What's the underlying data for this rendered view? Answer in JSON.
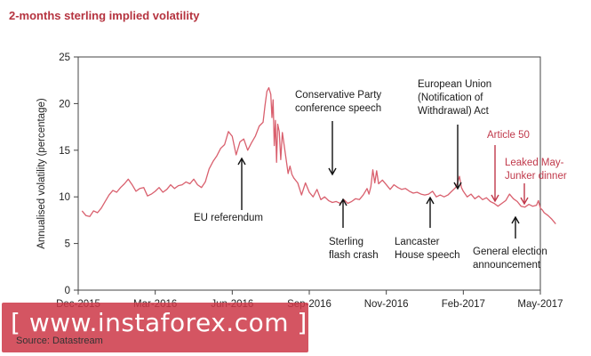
{
  "chart_data": {
    "type": "line",
    "title": "2-months sterling implied volatility",
    "ylabel": "Annualised volatility (percentage)",
    "xlabel": "",
    "ylim": [
      0,
      25
    ],
    "yticks": [
      0,
      5,
      10,
      15,
      20,
      25
    ],
    "xticks": [
      "Dec-2015",
      "Mar-2016",
      "Jun-2016",
      "Sep-2016",
      "Nov-2016",
      "Feb-2017",
      "May-2017"
    ],
    "grid": false,
    "line_color": "#d9606e",
    "series": [
      {
        "name": "",
        "values": [
          [
            0.1,
            8.5
          ],
          [
            0.2,
            8.0
          ],
          [
            0.3,
            7.9
          ],
          [
            0.4,
            8.5
          ],
          [
            0.5,
            8.3
          ],
          [
            0.6,
            8.8
          ],
          [
            0.7,
            9.5
          ],
          [
            0.8,
            10.2
          ],
          [
            0.9,
            10.7
          ],
          [
            1.0,
            10.5
          ],
          [
            1.1,
            11.0
          ],
          [
            1.2,
            11.4
          ],
          [
            1.3,
            11.9
          ],
          [
            1.4,
            11.3
          ],
          [
            1.5,
            10.6
          ],
          [
            1.6,
            10.9
          ],
          [
            1.7,
            11.0
          ],
          [
            1.8,
            10.1
          ],
          [
            1.9,
            10.3
          ],
          [
            2.0,
            10.6
          ],
          [
            2.1,
            11.0
          ],
          [
            2.2,
            10.5
          ],
          [
            2.3,
            10.8
          ],
          [
            2.4,
            11.3
          ],
          [
            2.5,
            10.9
          ],
          [
            2.6,
            11.2
          ],
          [
            2.7,
            11.3
          ],
          [
            2.8,
            11.6
          ],
          [
            2.9,
            11.4
          ],
          [
            3.0,
            11.9
          ],
          [
            3.1,
            11.3
          ],
          [
            3.2,
            11.0
          ],
          [
            3.3,
            11.6
          ],
          [
            3.4,
            13.0
          ],
          [
            3.5,
            13.8
          ],
          [
            3.6,
            14.4
          ],
          [
            3.7,
            15.2
          ],
          [
            3.8,
            15.6
          ],
          [
            3.9,
            17.0
          ],
          [
            4.0,
            16.5
          ],
          [
            4.1,
            14.5
          ],
          [
            4.2,
            15.9
          ],
          [
            4.3,
            16.2
          ],
          [
            4.4,
            15.0
          ],
          [
            4.5,
            15.8
          ],
          [
            4.6,
            16.5
          ],
          [
            4.7,
            17.6
          ],
          [
            4.8,
            18.0
          ],
          [
            4.85,
            19.8
          ],
          [
            4.9,
            21.3
          ],
          [
            4.95,
            21.7
          ],
          [
            5.0,
            21.0
          ],
          [
            5.03,
            18.5
          ],
          [
            5.06,
            20.4
          ],
          [
            5.09,
            15.5
          ],
          [
            5.12,
            18.2
          ],
          [
            5.15,
            13.7
          ],
          [
            5.18,
            17.8
          ],
          [
            5.22,
            17.0
          ],
          [
            5.26,
            14.0
          ],
          [
            5.3,
            16.9
          ],
          [
            5.35,
            15.5
          ],
          [
            5.4,
            14.0
          ],
          [
            5.45,
            12.5
          ],
          [
            5.5,
            13.3
          ],
          [
            5.55,
            12.4
          ],
          [
            5.6,
            12.0
          ],
          [
            5.7,
            11.5
          ],
          [
            5.8,
            10.2
          ],
          [
            5.9,
            11.5
          ],
          [
            6.0,
            10.5
          ],
          [
            6.1,
            10.0
          ],
          [
            6.2,
            10.8
          ],
          [
            6.3,
            9.7
          ],
          [
            6.4,
            10.0
          ],
          [
            6.5,
            9.6
          ],
          [
            6.6,
            9.4
          ],
          [
            6.7,
            9.5
          ],
          [
            6.8,
            9.3
          ],
          [
            6.9,
            9.7
          ],
          [
            7.0,
            9.3
          ],
          [
            7.1,
            9.5
          ],
          [
            7.2,
            9.8
          ],
          [
            7.3,
            9.7
          ],
          [
            7.4,
            10.2
          ],
          [
            7.5,
            10.9
          ],
          [
            7.55,
            10.3
          ],
          [
            7.6,
            11.1
          ],
          [
            7.65,
            12.9
          ],
          [
            7.7,
            11.5
          ],
          [
            7.75,
            12.8
          ],
          [
            7.8,
            11.4
          ],
          [
            7.9,
            11.8
          ],
          [
            8.0,
            11.3
          ],
          [
            8.1,
            10.8
          ],
          [
            8.2,
            11.3
          ],
          [
            8.3,
            11.0
          ],
          [
            8.4,
            10.8
          ],
          [
            8.5,
            10.9
          ],
          [
            8.6,
            10.6
          ],
          [
            8.7,
            10.4
          ],
          [
            8.8,
            10.5
          ],
          [
            8.9,
            10.3
          ],
          [
            9.0,
            10.2
          ],
          [
            9.1,
            10.3
          ],
          [
            9.2,
            10.6
          ],
          [
            9.3,
            10.0
          ],
          [
            9.4,
            10.2
          ],
          [
            9.5,
            10.0
          ],
          [
            9.6,
            10.2
          ],
          [
            9.7,
            10.6
          ],
          [
            9.8,
            11.0
          ],
          [
            9.85,
            11.5
          ],
          [
            9.9,
            12.2
          ],
          [
            9.95,
            11.0
          ],
          [
            10.0,
            10.6
          ],
          [
            10.1,
            10.0
          ],
          [
            10.2,
            10.3
          ],
          [
            10.3,
            9.8
          ],
          [
            10.4,
            10.1
          ],
          [
            10.5,
            9.7
          ],
          [
            10.6,
            9.9
          ],
          [
            10.7,
            9.5
          ],
          [
            10.8,
            9.3
          ],
          [
            10.9,
            9.0
          ],
          [
            11.0,
            9.3
          ],
          [
            11.1,
            9.6
          ],
          [
            11.2,
            10.3
          ],
          [
            11.3,
            9.8
          ],
          [
            11.4,
            9.5
          ],
          [
            11.5,
            9.0
          ],
          [
            11.6,
            8.9
          ],
          [
            11.7,
            9.2
          ],
          [
            11.8,
            9.0
          ],
          [
            11.9,
            9.1
          ],
          [
            11.95,
            9.6
          ],
          [
            12.0,
            8.8
          ],
          [
            12.05,
            8.6
          ],
          [
            12.1,
            8.3
          ],
          [
            12.2,
            8.0
          ],
          [
            12.3,
            7.6
          ],
          [
            12.4,
            7.1
          ]
        ]
      }
    ],
    "annotations": [
      {
        "id": "eu-referendum",
        "lines": [
          "EU referendum"
        ],
        "color": "black",
        "arrow": "up",
        "x": 5.1,
        "y": 13.8
      },
      {
        "id": "conservative-conference",
        "lines": [
          "Conservative Party",
          "conference speech"
        ],
        "color": "black",
        "arrow": "down",
        "x": 7.45,
        "y": 12.7
      },
      {
        "id": "sterling-flash-crash",
        "lines": [
          "Sterling",
          "flash crash"
        ],
        "color": "black",
        "arrow": "up",
        "x": 7.7,
        "y": 9.5
      },
      {
        "id": "lancaster-house",
        "lines": [
          "Lancaster",
          "House speech"
        ],
        "color": "black",
        "arrow": "up",
        "x": 9.95,
        "y": 9.6
      },
      {
        "id": "article-50-act",
        "lines": [
          "European Union",
          "(Notification of",
          "Withdrawal) Act"
        ],
        "color": "black",
        "arrow": "down",
        "x": 11.0,
        "y": 10.3
      },
      {
        "id": "article-50",
        "lines": [
          "Article 50"
        ],
        "color": "red",
        "arrow": "down",
        "x": 11.35,
        "y": 9.8
      },
      {
        "id": "general-election",
        "lines": [
          "General election",
          "announcement"
        ],
        "color": "black",
        "arrow": "up",
        "x": 11.95,
        "y": 8.1
      },
      {
        "id": "leaked-dinner",
        "lines": [
          "Leaked May-",
          "Junker dinner"
        ],
        "color": "red",
        "arrow": "down",
        "x": 12.3,
        "y": 9.2
      }
    ]
  },
  "watermark": {
    "text": "[ www.instaforex.com ]"
  },
  "source": "Source: Datastream"
}
